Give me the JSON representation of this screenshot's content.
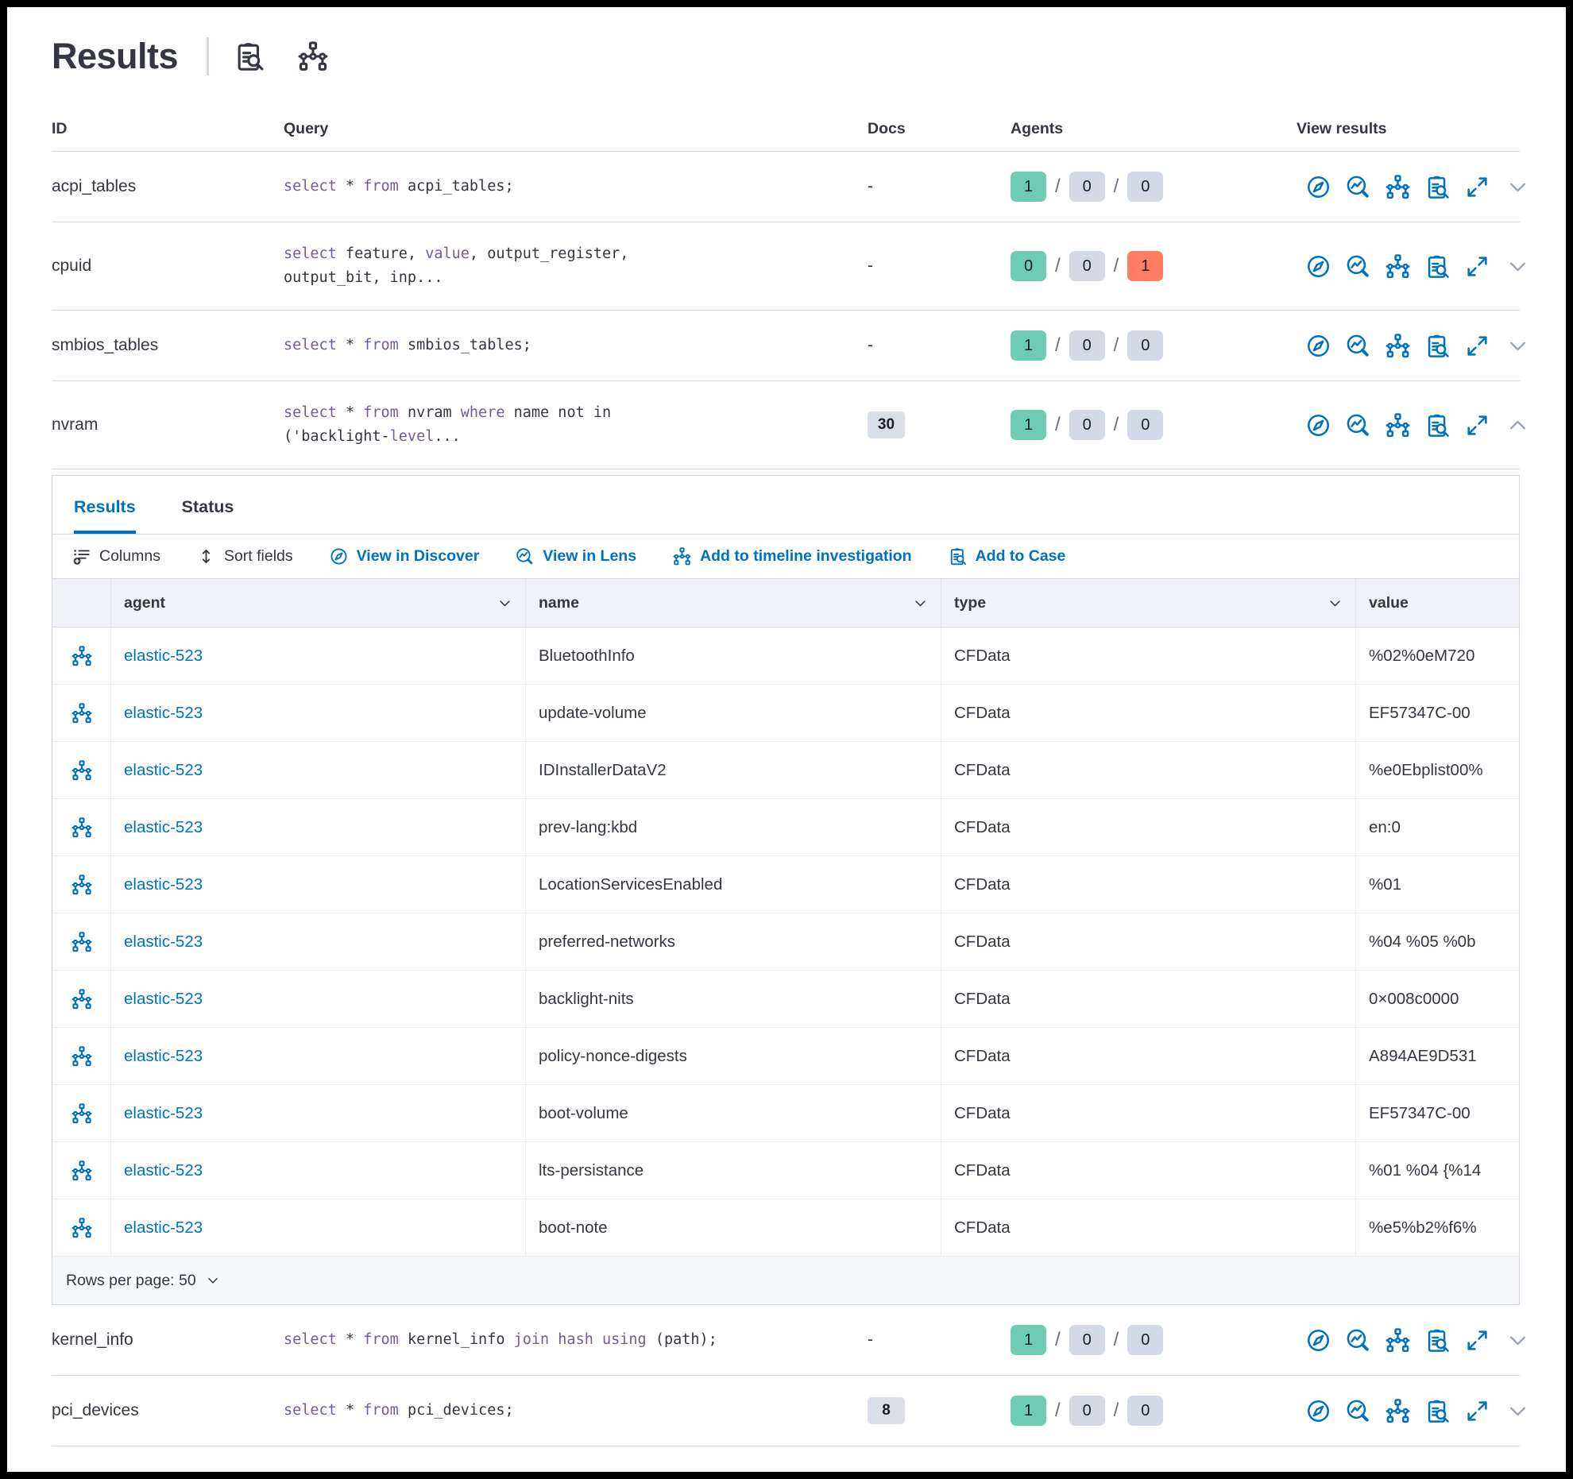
{
  "page": {
    "title": "Results",
    "header_icons": [
      "inspect-icon",
      "timeline-icon"
    ]
  },
  "table": {
    "columns": [
      "ID",
      "Query",
      "Docs",
      "Agents",
      "View results"
    ],
    "action_icons": [
      "discover-icon",
      "lens-icon",
      "timeline-icon",
      "inspect-icon",
      "expand-icon"
    ],
    "rows_before_panel": [
      {
        "id": "acpi_tables",
        "query": [
          {
            "t": "select",
            "k": true
          },
          {
            "t": " * "
          },
          {
            "t": "from",
            "k": true
          },
          {
            "t": " acpi_tables;"
          }
        ],
        "docs": "-",
        "docs_badge": false,
        "agents": [
          {
            "value": "1",
            "color": "success"
          },
          {
            "value": "0",
            "color": "default"
          },
          {
            "value": "0",
            "color": "default"
          }
        ],
        "expanded": false
      },
      {
        "id": "cpuid",
        "query": [
          {
            "t": "select",
            "k": true
          },
          {
            "t": " feature, "
          },
          {
            "t": "value",
            "k": true
          },
          {
            "t": ", output_register,\noutput_bit, inp..."
          }
        ],
        "docs": "-",
        "docs_badge": false,
        "agents": [
          {
            "value": "0",
            "color": "success"
          },
          {
            "value": "0",
            "color": "default"
          },
          {
            "value": "1",
            "color": "danger"
          }
        ],
        "expanded": false
      },
      {
        "id": "smbios_tables",
        "query": [
          {
            "t": "select",
            "k": true
          },
          {
            "t": " * "
          },
          {
            "t": "from",
            "k": true
          },
          {
            "t": " smbios_tables;"
          }
        ],
        "docs": "-",
        "docs_badge": false,
        "agents": [
          {
            "value": "1",
            "color": "success"
          },
          {
            "value": "0",
            "color": "default"
          },
          {
            "value": "0",
            "color": "default"
          }
        ],
        "expanded": false
      },
      {
        "id": "nvram",
        "query": [
          {
            "t": "select",
            "k": true
          },
          {
            "t": " * "
          },
          {
            "t": "from",
            "k": true
          },
          {
            "t": " nvram "
          },
          {
            "t": "where",
            "k": true
          },
          {
            "t": " name not in\n('backlight-"
          },
          {
            "t": "level",
            "k": true
          },
          {
            "t": "..."
          }
        ],
        "docs": "30",
        "docs_badge": true,
        "agents": [
          {
            "value": "1",
            "color": "success"
          },
          {
            "value": "0",
            "color": "default"
          },
          {
            "value": "0",
            "color": "default"
          }
        ],
        "expanded": true
      }
    ],
    "rows_after_panel": [
      {
        "id": "kernel_info",
        "query": [
          {
            "t": "select",
            "k": true
          },
          {
            "t": " * "
          },
          {
            "t": "from",
            "k": true
          },
          {
            "t": " kernel_info "
          },
          {
            "t": "join hash using",
            "k": true
          },
          {
            "t": " (path);"
          }
        ],
        "docs": "-",
        "docs_badge": false,
        "agents": [
          {
            "value": "1",
            "color": "success"
          },
          {
            "value": "0",
            "color": "default"
          },
          {
            "value": "0",
            "color": "default"
          }
        ],
        "expanded": false
      },
      {
        "id": "pci_devices",
        "query": [
          {
            "t": "select",
            "k": true
          },
          {
            "t": " * "
          },
          {
            "t": "from",
            "k": true
          },
          {
            "t": " pci_devices;"
          }
        ],
        "docs": "8",
        "docs_badge": true,
        "agents": [
          {
            "value": "1",
            "color": "success"
          },
          {
            "value": "0",
            "color": "default"
          },
          {
            "value": "0",
            "color": "default"
          }
        ],
        "expanded": false
      }
    ]
  },
  "panel": {
    "tabs": [
      {
        "label": "Results",
        "active": true
      },
      {
        "label": "Status",
        "active": false
      }
    ],
    "toolbar": [
      {
        "label": "Columns",
        "icon": "columns-icon",
        "style": "dark"
      },
      {
        "label": "Sort fields",
        "icon": "sort-icon",
        "style": "dark"
      },
      {
        "label": "View in Discover",
        "icon": "discover-icon",
        "style": "blue"
      },
      {
        "label": "View in Lens",
        "icon": "lens-icon",
        "style": "blue"
      },
      {
        "label": "Add to timeline investigation",
        "icon": "timeline-icon",
        "style": "blue"
      },
      {
        "label": "Add to Case",
        "icon": "inspect-icon",
        "style": "blue"
      }
    ],
    "grid": {
      "columns": [
        "agent",
        "name",
        "type",
        "value"
      ],
      "row_icon": "timeline-icon",
      "rows": [
        {
          "agent": "elastic-523",
          "name": "BluetoothInfo",
          "type": "CFData",
          "value": "%02%0eM720"
        },
        {
          "agent": "elastic-523",
          "name": "update-volume",
          "type": "CFData",
          "value": "EF57347C-00"
        },
        {
          "agent": "elastic-523",
          "name": "IDInstallerDataV2",
          "type": "CFData",
          "value": "%e0Ebplist00%"
        },
        {
          "agent": "elastic-523",
          "name": "prev-lang:kbd",
          "type": "CFData",
          "value": "en:0"
        },
        {
          "agent": "elastic-523",
          "name": "LocationServicesEnabled",
          "type": "CFData",
          "value": "%01"
        },
        {
          "agent": "elastic-523",
          "name": "preferred-networks",
          "type": "CFData",
          "value": "%04 %05 %0b"
        },
        {
          "agent": "elastic-523",
          "name": "backlight-nits",
          "type": "CFData",
          "value": "0×008c0000"
        },
        {
          "agent": "elastic-523",
          "name": "policy-nonce-digests",
          "type": "CFData",
          "value": "A894AE9D531"
        },
        {
          "agent": "elastic-523",
          "name": "boot-volume",
          "type": "CFData",
          "value": "EF57347C-00"
        },
        {
          "agent": "elastic-523",
          "name": "lts-persistance",
          "type": "CFData",
          "value": "%01 %04 {%14"
        },
        {
          "agent": "elastic-523",
          "name": "boot-note",
          "type": "CFData",
          "value": "%e5%b2%f6%"
        }
      ],
      "rows_per_page_label": "Rows per page: 50"
    }
  }
}
